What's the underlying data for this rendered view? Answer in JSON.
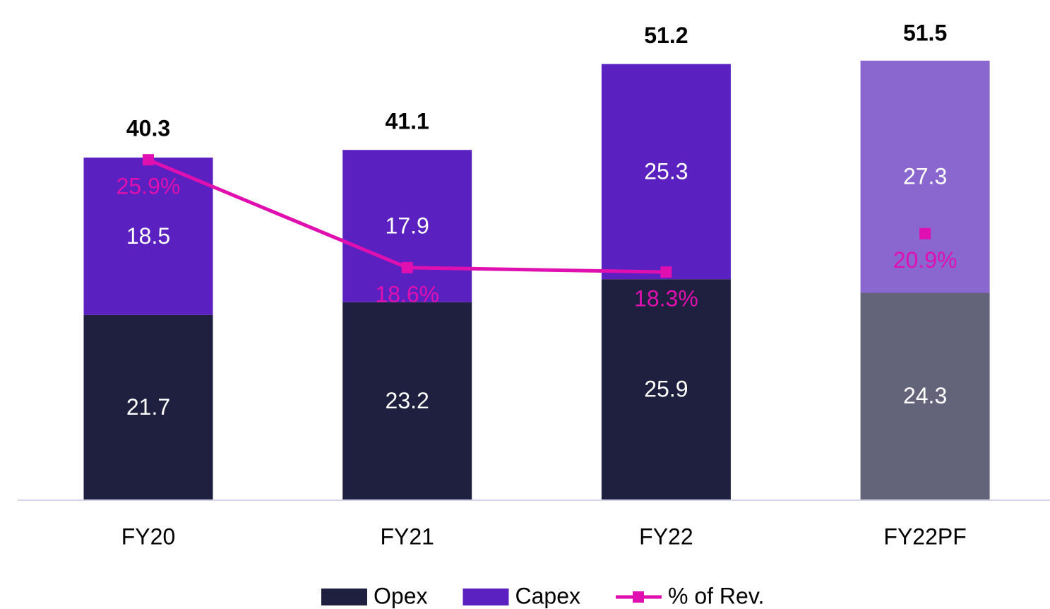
{
  "chart_data": {
    "type": "bar",
    "stacked": true,
    "categories": [
      "FY20",
      "FY21",
      "FY22",
      "FY22PF"
    ],
    "series": [
      {
        "name": "Opex",
        "color": "#1f1f3f",
        "colors": [
          "#1f1f3f",
          "#1f1f3f",
          "#1f1f3f",
          "#63637a"
        ],
        "values": [
          21.7,
          23.2,
          25.9,
          24.3
        ]
      },
      {
        "name": "Capex",
        "color": "#5a20c0",
        "colors": [
          "#5a20c0",
          "#5a20c0",
          "#5a20c0",
          "#8a66cf"
        ],
        "values": [
          18.5,
          17.9,
          25.3,
          27.3
        ]
      },
      {
        "name": "% of Rev.",
        "type": "line",
        "axis": "y2",
        "color": "#e010b0",
        "values": [
          25.9,
          18.6,
          18.3,
          20.9
        ],
        "value_labels": [
          "25.9%",
          "18.6%",
          "18.3%",
          "20.9%"
        ]
      }
    ],
    "totals": [
      40.3,
      41.1,
      51.2,
      51.5
    ],
    "ylim": [
      0,
      58
    ],
    "y2lim": [
      2.9,
      36.3
    ],
    "legend": "bottom"
  }
}
